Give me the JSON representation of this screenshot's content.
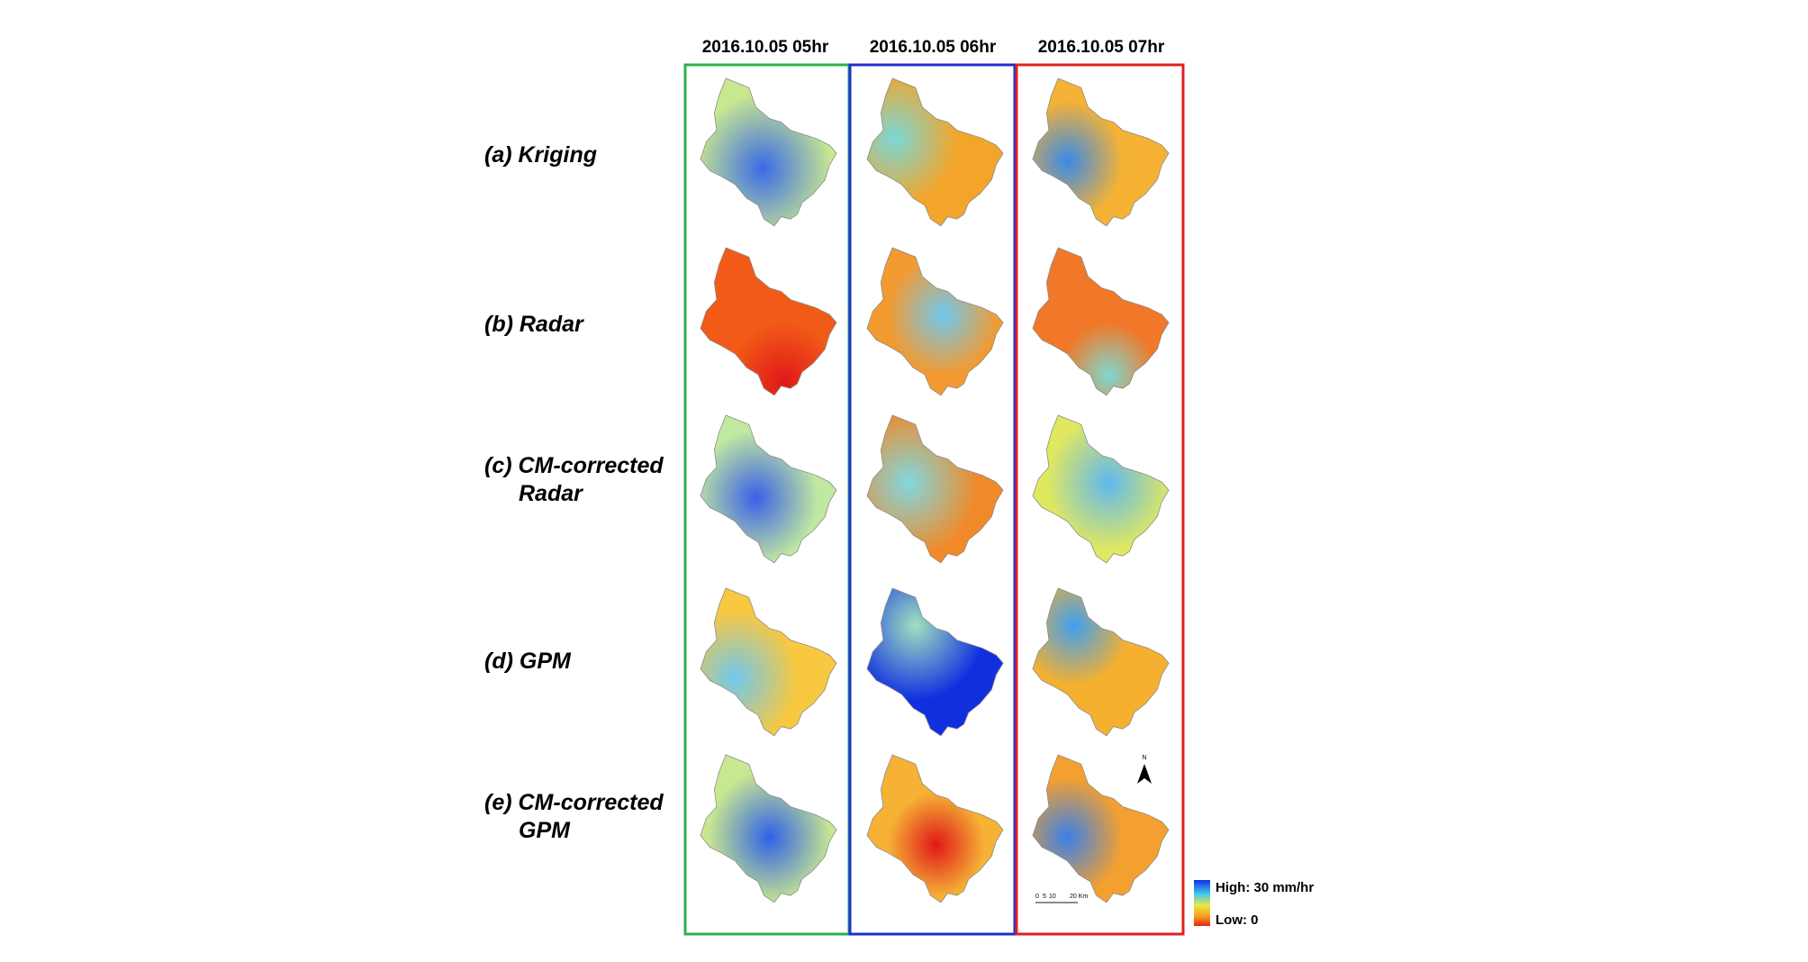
{
  "columns": [
    "2016.10.05 05hr",
    "2016.10.05 06hr",
    "2016.10.05 07hr"
  ],
  "rows": [
    {
      "label": [
        "(a) Kriging"
      ]
    },
    {
      "label": [
        "(b) Radar"
      ]
    },
    {
      "label": [
        "(c) CM-corrected",
        "Radar"
      ]
    },
    {
      "label": [
        "(d) GPM"
      ]
    },
    {
      "label": [
        "(e) CM-corrected",
        "GPM"
      ]
    }
  ],
  "legend": {
    "high": "High: 30 mm/hr",
    "low": "Low: 0"
  },
  "scale_bar": {
    "labels": [
      "0",
      "5",
      "10",
      "20 Km"
    ]
  },
  "north_arrow": "N"
}
